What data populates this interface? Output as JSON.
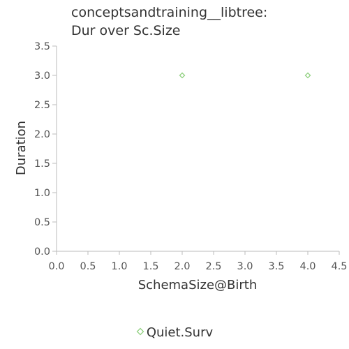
{
  "chart_data": {
    "type": "scatter",
    "title_lines": [
      "conceptsandtraining__libtree:",
      "Dur over Sc.Size"
    ],
    "xlabel": "SchemaSize@Birth",
    "ylabel": "Duration",
    "xlim": [
      0,
      4.5
    ],
    "ylim": [
      0,
      3.5
    ],
    "x_ticks": [
      "0.0",
      "0.5",
      "1.0",
      "1.5",
      "2.0",
      "2.5",
      "3.0",
      "3.5",
      "4.0",
      "4.5"
    ],
    "y_ticks": [
      "0.0",
      "0.5",
      "1.0",
      "1.5",
      "2.0",
      "2.5",
      "3.0",
      "3.5"
    ],
    "x_tick_values": [
      0,
      0.5,
      1,
      1.5,
      2,
      2.5,
      3,
      3.5,
      4,
      4.5
    ],
    "y_tick_values": [
      0,
      0.5,
      1,
      1.5,
      2,
      2.5,
      3,
      3.5
    ],
    "grid": false,
    "legend_position": "bottom-center",
    "series": [
      {
        "name": "Quiet.Surv",
        "marker": "diamond",
        "color": "#90d080",
        "points": [
          {
            "x": 2,
            "y": 3
          },
          {
            "x": 4,
            "y": 3
          }
        ]
      }
    ]
  }
}
